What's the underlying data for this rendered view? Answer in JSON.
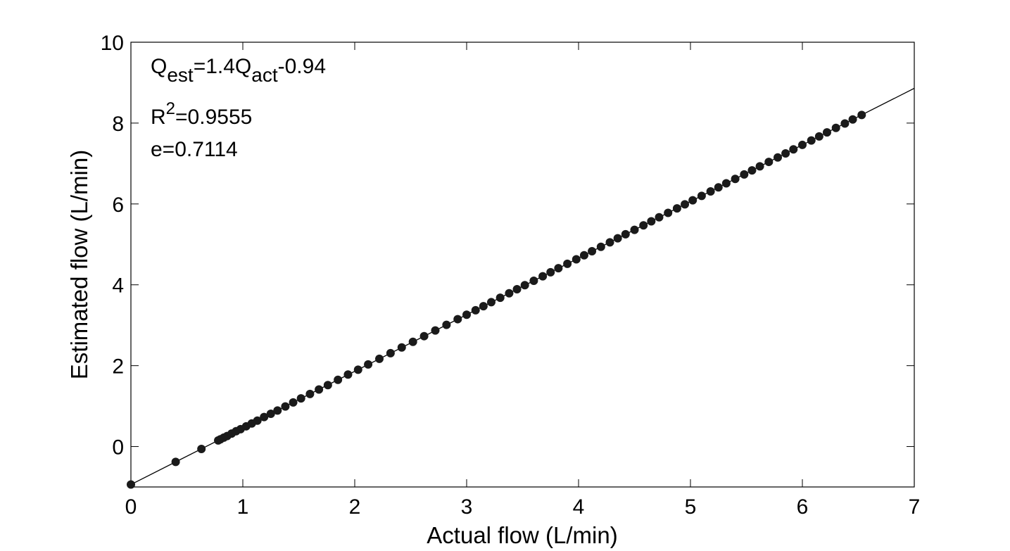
{
  "chart_data": {
    "type": "scatter",
    "xlabel": "Actual flow (L/min)",
    "ylabel": "Estimated flow (L/min)",
    "xlim": [
      0,
      7
    ],
    "ylim": [
      -1,
      10
    ],
    "xticks": [
      0,
      1,
      2,
      3,
      4,
      5,
      6,
      7
    ],
    "yticks": [
      0,
      2,
      4,
      6,
      8,
      10
    ],
    "color": "#1a1a1a",
    "x": [
      0,
      0.4,
      0.63,
      0.78,
      0.8,
      0.83,
      0.86,
      0.9,
      0.94,
      0.98,
      1.03,
      1.08,
      1.13,
      1.19,
      1.25,
      1.31,
      1.38,
      1.45,
      1.52,
      1.6,
      1.68,
      1.76,
      1.85,
      1.94,
      2.03,
      2.12,
      2.22,
      2.32,
      2.42,
      2.52,
      2.62,
      2.72,
      2.82,
      2.92,
      3.0,
      3.08,
      3.15,
      3.22,
      3.3,
      3.38,
      3.45,
      3.52,
      3.6,
      3.68,
      3.75,
      3.82,
      3.9,
      3.98,
      4.05,
      4.12,
      4.2,
      4.28,
      4.35,
      4.42,
      4.5,
      4.58,
      4.65,
      4.72,
      4.8,
      4.88,
      4.95,
      5.02,
      5.1,
      5.18,
      5.25,
      5.32,
      5.4,
      5.48,
      5.55,
      5.62,
      5.7,
      5.78,
      5.85,
      5.92,
      6.0,
      6.08,
      6.15,
      6.22,
      6.3,
      6.38,
      6.45,
      6.53
    ],
    "values": [
      -0.94,
      -0.38,
      -0.06,
      0.15,
      0.18,
      0.22,
      0.26,
      0.32,
      0.38,
      0.43,
      0.5,
      0.57,
      0.64,
      0.73,
      0.81,
      0.89,
      0.99,
      1.09,
      1.19,
      1.3,
      1.41,
      1.52,
      1.65,
      1.78,
      1.9,
      2.03,
      2.17,
      2.31,
      2.45,
      2.59,
      2.73,
      2.87,
      3.01,
      3.15,
      3.26,
      3.37,
      3.47,
      3.57,
      3.68,
      3.79,
      3.89,
      3.99,
      4.1,
      4.21,
      4.31,
      4.41,
      4.52,
      4.63,
      4.73,
      4.83,
      4.94,
      5.05,
      5.15,
      5.25,
      5.36,
      5.47,
      5.57,
      5.67,
      5.78,
      5.89,
      5.99,
      6.09,
      6.2,
      6.31,
      6.41,
      6.51,
      6.62,
      6.73,
      6.83,
      6.93,
      7.04,
      7.15,
      7.25,
      7.35,
      7.46,
      7.57,
      7.67,
      7.77,
      7.88,
      7.99,
      8.09,
      8.2
    ],
    "fit_line": {
      "x": [
        0,
        7
      ],
      "values": [
        -0.94,
        8.86
      ],
      "color": "#000000"
    },
    "annotations": [
      [
        {
          "text": "Q"
        },
        {
          "text": "est",
          "shift": "sub"
        },
        {
          "text": "=1.4Q"
        },
        {
          "text": "act",
          "shift": "sub"
        },
        {
          "text": "-0.94"
        }
      ],
      [
        {
          "text": "R"
        },
        {
          "text": "2",
          "shift": "super"
        },
        {
          "text": "=0.9555"
        }
      ],
      [
        {
          "text": "e=0.7114"
        }
      ]
    ]
  }
}
